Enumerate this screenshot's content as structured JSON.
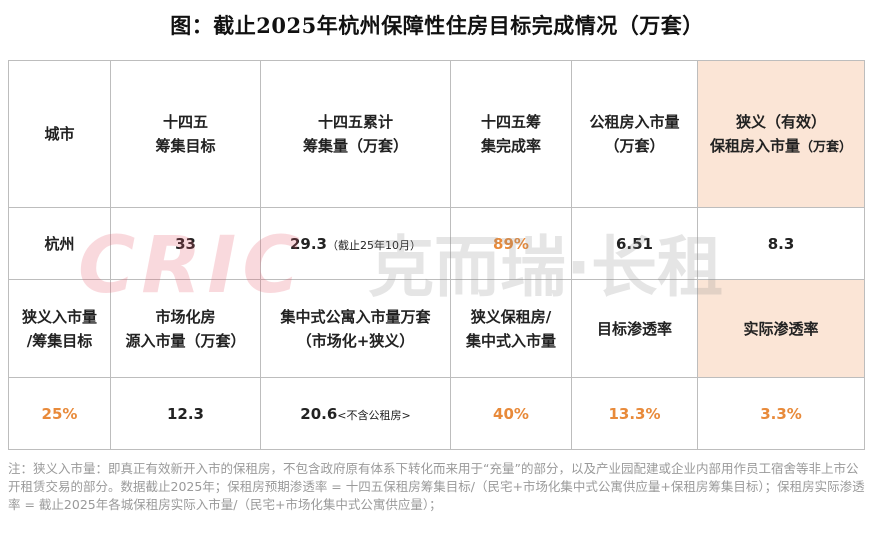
{
  "title": "图：截止2025年杭州保障性住房目标完成情况（万套）",
  "header_row1": {
    "city": "城市",
    "target_l1": "十四五",
    "target_l2": "筹集目标",
    "cumulative_l1": "十四五累计",
    "cumulative_l2": "筹集量（万套）",
    "completion_l1": "十四五筹",
    "completion_l2": "集完成率",
    "public_l1": "公租房入市量",
    "public_l2": "（万套）",
    "narrow_l1": "狭义（有效）",
    "narrow_l2": "保租房入市量",
    "narrow_unit": "（万套）"
  },
  "data_row1": {
    "city": "杭州",
    "target": "33",
    "cumulative": "29.3",
    "cumulative_note": "（截止25年10月）",
    "completion": "89%",
    "public": "6.51",
    "narrow": "8.3"
  },
  "header_row2": {
    "ratio_l1": "狭义入市量",
    "ratio_l2": "/筹集目标",
    "market_l1": "市场化房",
    "market_l2": "源入市量（万套）",
    "apt_l1": "集中式公寓入市量万套",
    "apt_l2": "（市场化+狭义）",
    "share_l1": "狭义保租房/",
    "share_l2": "集中式入市量",
    "target_pen": "目标渗透率",
    "actual_pen": "实际渗透率"
  },
  "data_row2": {
    "ratio": "25%",
    "market": "12.3",
    "apt": "20.6",
    "apt_note": "<不含公租房>",
    "share": "40%",
    "target_pen": "13.3%",
    "actual_pen": "3.3%"
  },
  "watermark": {
    "logo": "CRIC",
    "text": "克而瑞·长租"
  },
  "note": "注：狭义入市量：即真正有效新开入市的保租房，不包含政府原有体系下转化而来用于“充量”的部分，以及产业园配建或企业内部用作员工宿舍等非上市公开租赁交易的部分。数据截止2025年；保租房预期渗透率 = 十四五保租房筹集目标/（民宅+市场化集中式公寓供应量+保租房筹集目标）；保租房实际渗透率 = 截止2025年各城保租房实际入市量/（民宅+市场化集中式公寓供应量）；",
  "colors": {
    "highlight_bg": "#fbe5d6",
    "accent_orange": "#e88a3a",
    "watermark_red": "#e8566a",
    "watermark_gray": "#8c8c8c"
  }
}
